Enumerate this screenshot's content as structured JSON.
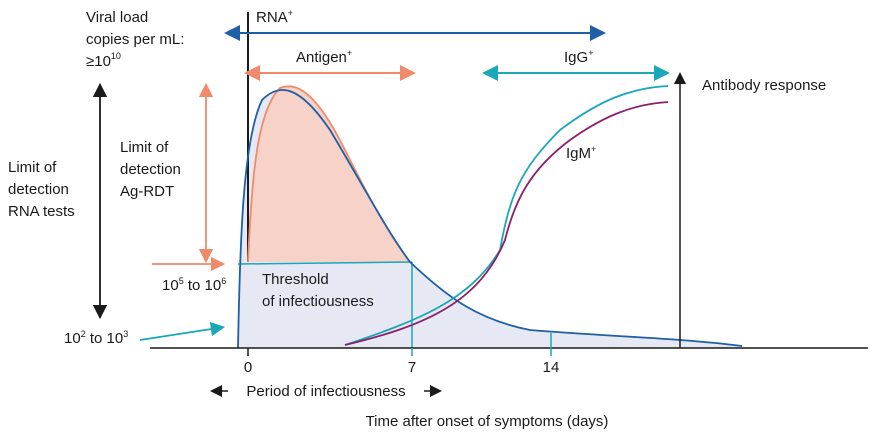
{
  "colors": {
    "rna": "#1f5fa6",
    "antigen": "#f08a6b",
    "antigen_fill": "#f6d2c8",
    "viral_fill": "#e6e9f3",
    "teal": "#1aa7b8",
    "igm": "#8e1f6b",
    "axis": "#1a1a1a"
  },
  "labels": {
    "viral_load_line1": "Viral load",
    "viral_load_line2": "copies per mL:",
    "viral_load_line3": "≥10",
    "viral_load_exp": "10",
    "rna_tests_line1": "Limit of",
    "rna_tests_line2": "detection",
    "rna_tests_line3": "RNA tests",
    "agrdt_line1": "Limit of",
    "agrdt_line2": "detection",
    "agrdt_line3": "Ag-RDT",
    "rna": "RNA",
    "rna_sup": "+",
    "antigen": "Antigen",
    "antigen_sup": "+",
    "igg": "IgG",
    "igg_sup": "+",
    "igm": "IgM",
    "igm_sup": "+",
    "antibody_response": "Antibody response",
    "threshold_line1": "Threshold",
    "threshold_line2": "of infectiousness",
    "level_high_a": "10",
    "level_high_a_exp": "5",
    "level_high_mid": " to 10",
    "level_high_b_exp": "6",
    "level_low_a": "10",
    "level_low_a_exp": "2",
    "level_low_mid": " to 10",
    "level_low_b_exp": "3",
    "period": "Period of infectiousness",
    "x_axis_title": "Time after onset of symptoms (days)"
  },
  "x_ticks": [
    "0",
    "7",
    "14"
  ]
}
